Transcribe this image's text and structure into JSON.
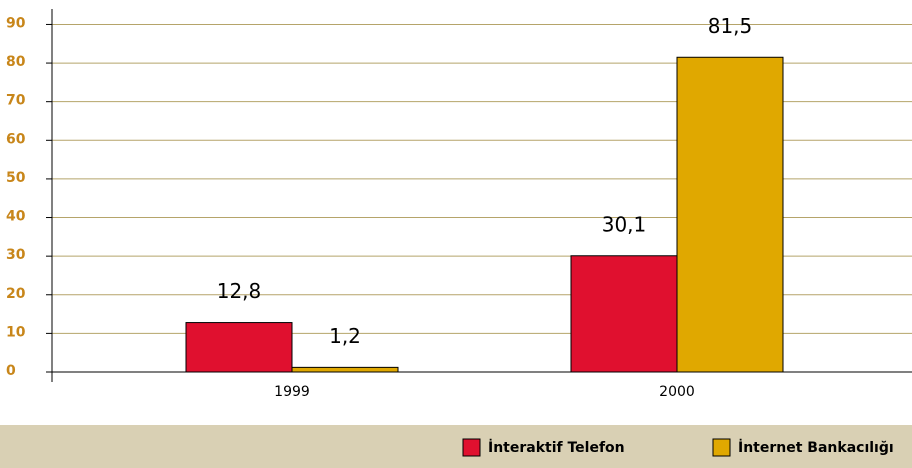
{
  "chart_data": {
    "type": "bar",
    "categories": [
      "1999",
      "2000"
    ],
    "series": [
      {
        "name": "İnteraktif Telefon",
        "color": "#e0102f",
        "values": [
          12.8,
          30.1
        ],
        "value_labels": [
          "12,8",
          "30,1"
        ]
      },
      {
        "name": "İnternet Bankacılığı",
        "color": "#e0a800",
        "values": [
          1.2,
          81.5
        ],
        "value_labels": [
          "1,2",
          "81,5"
        ]
      }
    ],
    "ylim": [
      0,
      94
    ],
    "yticks": [
      0,
      10,
      20,
      30,
      40,
      50,
      60,
      70,
      80,
      90
    ],
    "grid": true,
    "legend": "bottom"
  }
}
